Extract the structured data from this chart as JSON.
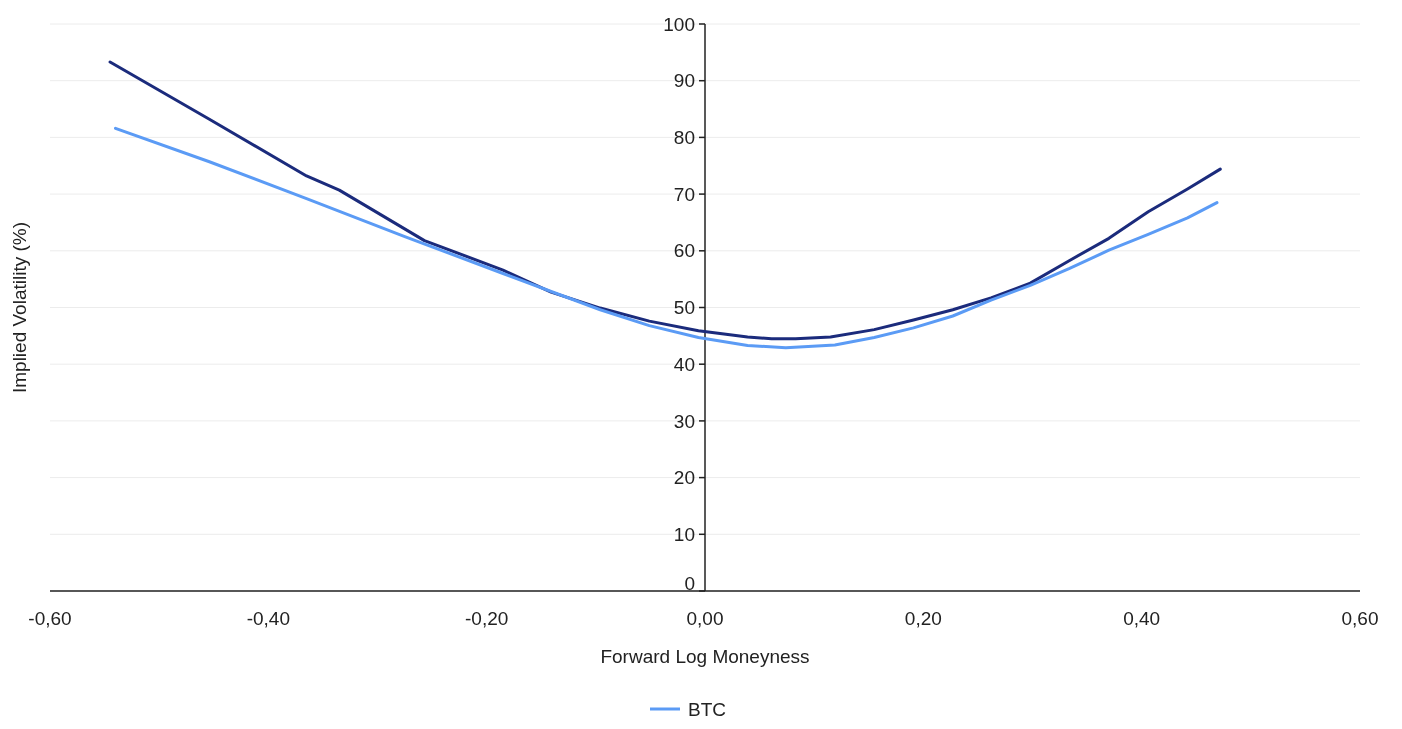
{
  "chart_data": {
    "type": "line",
    "xlabel": "Forward Log Moneyness",
    "ylabel": "Implied Volatility (%)",
    "xlim": [
      -0.6,
      0.6
    ],
    "xticks": [
      {
        "value": -0.6,
        "label": "-0,60"
      },
      {
        "value": -0.4,
        "label": "-0,40"
      },
      {
        "value": -0.2,
        "label": "-0,20"
      },
      {
        "value": 0,
        "label": "0,00"
      },
      {
        "value": 0.2,
        "label": "0,20"
      },
      {
        "value": 0.4,
        "label": "0,40"
      },
      {
        "value": 0.6,
        "label": "0,60"
      }
    ],
    "ylim": [
      0,
      100
    ],
    "yticks": [
      0,
      10,
      20,
      30,
      40,
      50,
      60,
      70,
      80,
      90,
      100
    ],
    "grid": "y",
    "legend": "bottom",
    "marker": "none",
    "line_style": "solid",
    "series": [
      {
        "color": "#1b2b7c",
        "x": [
          -0.545,
          -0.454,
          -0.365,
          -0.335,
          -0.306,
          -0.257,
          -0.185,
          -0.141,
          -0.096,
          -0.051,
          -0.006,
          0.039,
          0.061,
          0.083,
          0.115,
          0.155,
          0.191,
          0.227,
          0.262,
          0.298,
          0.334,
          0.37,
          0.406,
          0.442,
          0.472
        ],
        "values": [
          93.3,
          83.2,
          73.2,
          70.7,
          67.4,
          61.8,
          56.6,
          52.7,
          49.9,
          47.6,
          45.9,
          44.8,
          44.5,
          44.5,
          44.8,
          46.1,
          47.8,
          49.6,
          51.7,
          54.3,
          58.3,
          62.2,
          66.9,
          70.9,
          74.4
        ]
      },
      {
        "name": "BTC",
        "color": "#5b9bf5",
        "x": [
          -0.54,
          -0.454,
          -0.365,
          -0.275,
          -0.185,
          -0.096,
          -0.051,
          -0.006,
          0.039,
          0.074,
          0.119,
          0.155,
          0.191,
          0.227,
          0.262,
          0.298,
          0.334,
          0.37,
          0.406,
          0.442,
          0.469
        ],
        "values": [
          81.6,
          75.7,
          69.2,
          62.5,
          56.0,
          49.6,
          46.8,
          44.7,
          43.3,
          42.9,
          43.4,
          44.7,
          46.4,
          48.5,
          51.3,
          53.9,
          56.9,
          60.1,
          62.9,
          65.8,
          68.5
        ]
      }
    ]
  }
}
